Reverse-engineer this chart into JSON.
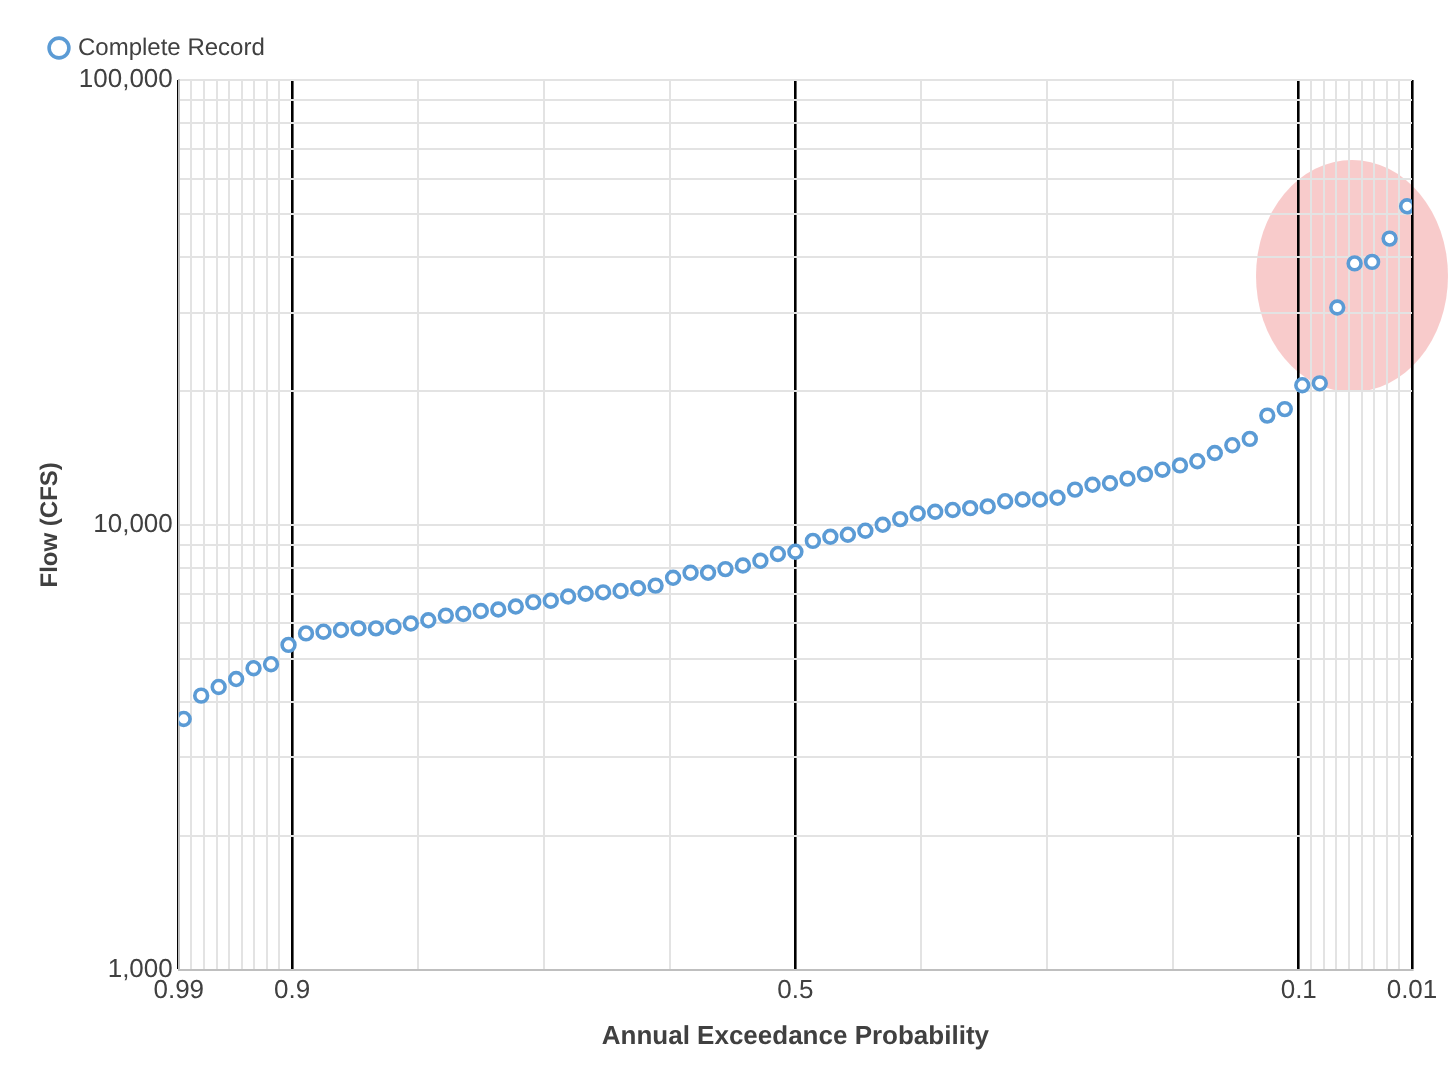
{
  "chart_data": {
    "type": "scatter",
    "xlabel": "Annual Exceedance Probability",
    "ylabel": "Flow (CFS)",
    "xlim": [
      0.99,
      0.01
    ],
    "xticks": [
      0.99,
      {
        "value": 0.98,
        "label": null
      },
      {
        "value": 0.97,
        "label": null
      },
      {
        "value": 0.96,
        "label": null
      },
      {
        "value": 0.95,
        "label": null
      },
      {
        "value": 0.94,
        "label": null
      },
      {
        "value": 0.93,
        "label": null
      },
      {
        "value": 0.92,
        "label": null
      },
      {
        "value": 0.91,
        "label": null
      },
      0.9,
      {
        "value": 0.8,
        "label": null
      },
      {
        "value": 0.7,
        "label": null
      },
      {
        "value": 0.6,
        "label": null
      },
      0.5,
      {
        "value": 0.4,
        "label": null
      },
      {
        "value": 0.3,
        "label": null
      },
      {
        "value": 0.2,
        "label": null
      },
      0.1,
      {
        "value": 0.09,
        "label": null
      },
      {
        "value": 0.08,
        "label": null
      },
      {
        "value": 0.07,
        "label": null
      },
      {
        "value": 0.06,
        "label": null
      },
      {
        "value": 0.05,
        "label": null
      },
      {
        "value": 0.04,
        "label": null
      },
      {
        "value": 0.03,
        "label": null
      },
      {
        "value": 0.02,
        "label": null
      },
      0.01
    ],
    "log": "y",
    "ylim": [
      1000,
      100000
    ],
    "yticks": [
      {
        "value": 1000,
        "label": "1,000"
      },
      {
        "value": 2000,
        "label": null
      },
      {
        "value": 3000,
        "label": null
      },
      {
        "value": 4000,
        "label": null
      },
      {
        "value": 5000,
        "label": null
      },
      {
        "value": 6000,
        "label": null
      },
      {
        "value": 7000,
        "label": null
      },
      {
        "value": 8000,
        "label": null
      },
      {
        "value": 9000,
        "label": null
      },
      {
        "value": 10000,
        "label": "10,000"
      },
      {
        "value": 20000,
        "label": null
      },
      {
        "value": 30000,
        "label": null
      },
      {
        "value": 40000,
        "label": null
      },
      {
        "value": 50000,
        "label": null
      },
      {
        "value": 60000,
        "label": null
      },
      {
        "value": 70000,
        "label": null
      },
      {
        "value": 80000,
        "label": null
      },
      {
        "value": 90000,
        "label": null
      },
      {
        "value": 100000,
        "label": "100,000"
      }
    ],
    "grid": true,
    "legend": "top left",
    "marker": "circle",
    "series": [
      {
        "name": "Complete Record",
        "color": "#5b9bd5",
        "x": [
          0.0139,
          0.0278,
          0.0417,
          0.0556,
          0.0694,
          0.0833,
          0.0972,
          0.1111,
          0.125,
          0.1389,
          0.1528,
          0.1667,
          0.1806,
          0.1944,
          0.2083,
          0.2222,
          0.2361,
          0.25,
          0.2639,
          0.2778,
          0.2917,
          0.3056,
          0.3194,
          0.3333,
          0.3472,
          0.3611,
          0.375,
          0.3889,
          0.4028,
          0.4167,
          0.4306,
          0.4444,
          0.4583,
          0.4722,
          0.4861,
          0.5,
          0.5139,
          0.5278,
          0.5417,
          0.5556,
          0.5694,
          0.5833,
          0.5972,
          0.6111,
          0.625,
          0.6389,
          0.6528,
          0.6667,
          0.6806,
          0.6944,
          0.7083,
          0.7222,
          0.7361,
          0.75,
          0.7639,
          0.7778,
          0.7917,
          0.8056,
          0.8194,
          0.8333,
          0.8472,
          0.8611,
          0.875,
          0.8889,
          0.9028,
          0.9167,
          0.9306,
          0.9444,
          0.9583,
          0.9722,
          0.9861
        ],
        "values": [
          52000,
          44000,
          39000,
          38700,
          30800,
          20800,
          20600,
          18200,
          17600,
          15600,
          15100,
          14500,
          13900,
          13600,
          13300,
          13000,
          12700,
          12400,
          12300,
          12000,
          11500,
          11400,
          11400,
          11300,
          11000,
          10900,
          10800,
          10700,
          10600,
          10300,
          10000,
          9700,
          9500,
          9400,
          9200,
          8700,
          8600,
          8300,
          8100,
          7950,
          7800,
          7800,
          7600,
          7300,
          7200,
          7100,
          7050,
          7000,
          6900,
          6750,
          6700,
          6550,
          6450,
          6400,
          6300,
          6250,
          6100,
          6000,
          5900,
          5850,
          5850,
          5800,
          5750,
          5700,
          5370,
          4860,
          4760,
          4500,
          4320,
          4130,
          3660
        ]
      }
    ]
  }
}
